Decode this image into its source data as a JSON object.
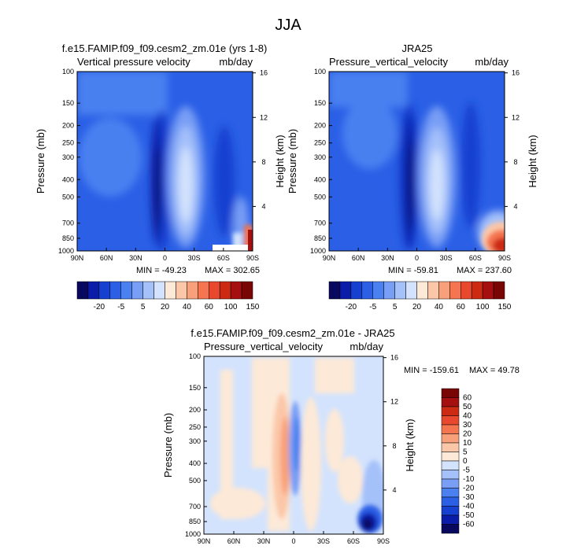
{
  "figure": {
    "title": "JJA"
  },
  "chart_data": [
    {
      "type": "heatmap",
      "title": "f.e15.FAMIP.f09_f09.cesm2_zm.01e (yrs 1-8)",
      "variable": "Vertical pressure velocity",
      "units": "mb/day",
      "ylabel": "Pressure (mb)",
      "ylabel_right": "Height (km)",
      "x_ticks": [
        "90N",
        "60N",
        "30N",
        "0",
        "30S",
        "60S",
        "90S"
      ],
      "y_ticks": [
        "100",
        "150",
        "200",
        "250",
        "300",
        "400",
        "500",
        "700",
        "850",
        "1000"
      ],
      "height_ticks": [
        "4",
        "8",
        "12",
        "16"
      ],
      "min_label": "MIN = -49.23",
      "max_label": "MAX = 302.65",
      "min": -49.23,
      "max": 302.65
    },
    {
      "type": "heatmap",
      "title": "JRA25",
      "variable": "Pressure_vertical_velocity",
      "units": "mb/day",
      "ylabel": "Pressure (mb)",
      "ylabel_right": "Height (km)",
      "x_ticks": [
        "90N",
        "60N",
        "30N",
        "0",
        "30S",
        "60S",
        "90S"
      ],
      "y_ticks": [
        "100",
        "150",
        "200",
        "250",
        "300",
        "400",
        "500",
        "700",
        "850",
        "1000"
      ],
      "height_ticks": [
        "4",
        "8",
        "12",
        "16"
      ],
      "min_label": "MIN = -59.81",
      "max_label": "MAX = 237.60",
      "min": -59.81,
      "max": 237.6
    },
    {
      "type": "heatmap",
      "title": "f.e15.FAMIP.f09_f09.cesm2_zm.01e - JRA25",
      "variable": "Pressure_vertical_velocity",
      "units": "mb/day",
      "ylabel": "Pressure (mb)",
      "ylabel_right": "Height (km)",
      "x_ticks": [
        "90N",
        "60N",
        "30N",
        "0",
        "30S",
        "60S",
        "90S"
      ],
      "y_ticks": [
        "100",
        "150",
        "200",
        "250",
        "300",
        "400",
        "500",
        "700",
        "850",
        "1000"
      ],
      "height_ticks": [
        "4",
        "8",
        "12",
        "16"
      ],
      "min_label": "MIN = -159.61",
      "max_label": "MAX =  49.78",
      "min": -159.61,
      "max": 49.78
    }
  ],
  "colorbars": {
    "top": {
      "labels": [
        "-20",
        "-5",
        "5",
        "20",
        "40",
        "60",
        "100",
        "150"
      ],
      "colors": [
        "#08085e",
        "#0a1ca8",
        "#1640d0",
        "#2a5fe6",
        "#4a80f0",
        "#789ef5",
        "#a5c1fa",
        "#d3e3fd",
        "#fde9d7",
        "#fbc7a8",
        "#f8a07a",
        "#f47550",
        "#e8492e",
        "#cc2a12",
        "#a50f0f",
        "#7a0505"
      ]
    },
    "bottom": {
      "labels": [
        "60",
        "50",
        "40",
        "30",
        "20",
        "10",
        "5",
        "0",
        "-5",
        "-10",
        "-20",
        "-30",
        "-40",
        "-50",
        "-60"
      ],
      "colors": [
        "#7a0505",
        "#a50f0f",
        "#cc2a12",
        "#e8492e",
        "#f47550",
        "#f8a07a",
        "#fbc7a8",
        "#fde9d7",
        "#d3e3fd",
        "#a5c1fa",
        "#789ef5",
        "#4a80f0",
        "#2a5fe6",
        "#1640d0",
        "#0a1ca8",
        "#08085e"
      ]
    }
  }
}
